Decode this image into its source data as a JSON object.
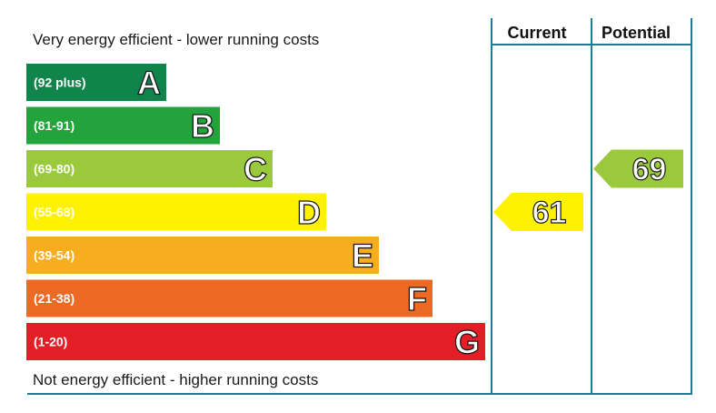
{
  "captions": {
    "top": "Very energy efficient - lower running costs",
    "bottom": "Not energy efficient - higher running costs"
  },
  "columns": {
    "current": "Current",
    "potential": "Potential"
  },
  "chart_data": {
    "type": "bar",
    "bands": [
      {
        "letter": "A",
        "range": "(92 plus)",
        "min": 92,
        "max": 100,
        "color": "#10844a"
      },
      {
        "letter": "B",
        "range": "(81-91)",
        "min": 81,
        "max": 91,
        "color": "#22a33c"
      },
      {
        "letter": "C",
        "range": "(69-80)",
        "min": 69,
        "max": 80,
        "color": "#9bc93e"
      },
      {
        "letter": "D",
        "range": "(55-68)",
        "min": 55,
        "max": 68,
        "color": "#fff200"
      },
      {
        "letter": "E",
        "range": "(39-54)",
        "min": 39,
        "max": 54,
        "color": "#f6ad1f"
      },
      {
        "letter": "F",
        "range": "(21-38)",
        "min": 21,
        "max": 38,
        "color": "#ec6a24"
      },
      {
        "letter": "G",
        "range": "(1-20)",
        "min": 1,
        "max": 20,
        "color": "#e31e26"
      }
    ],
    "ratings": {
      "current": {
        "value": 61,
        "band": "D",
        "color": "#fff200"
      },
      "potential": {
        "value": 69,
        "band": "C",
        "color": "#9bc93e"
      }
    },
    "frame_color": "#1b7d91"
  }
}
